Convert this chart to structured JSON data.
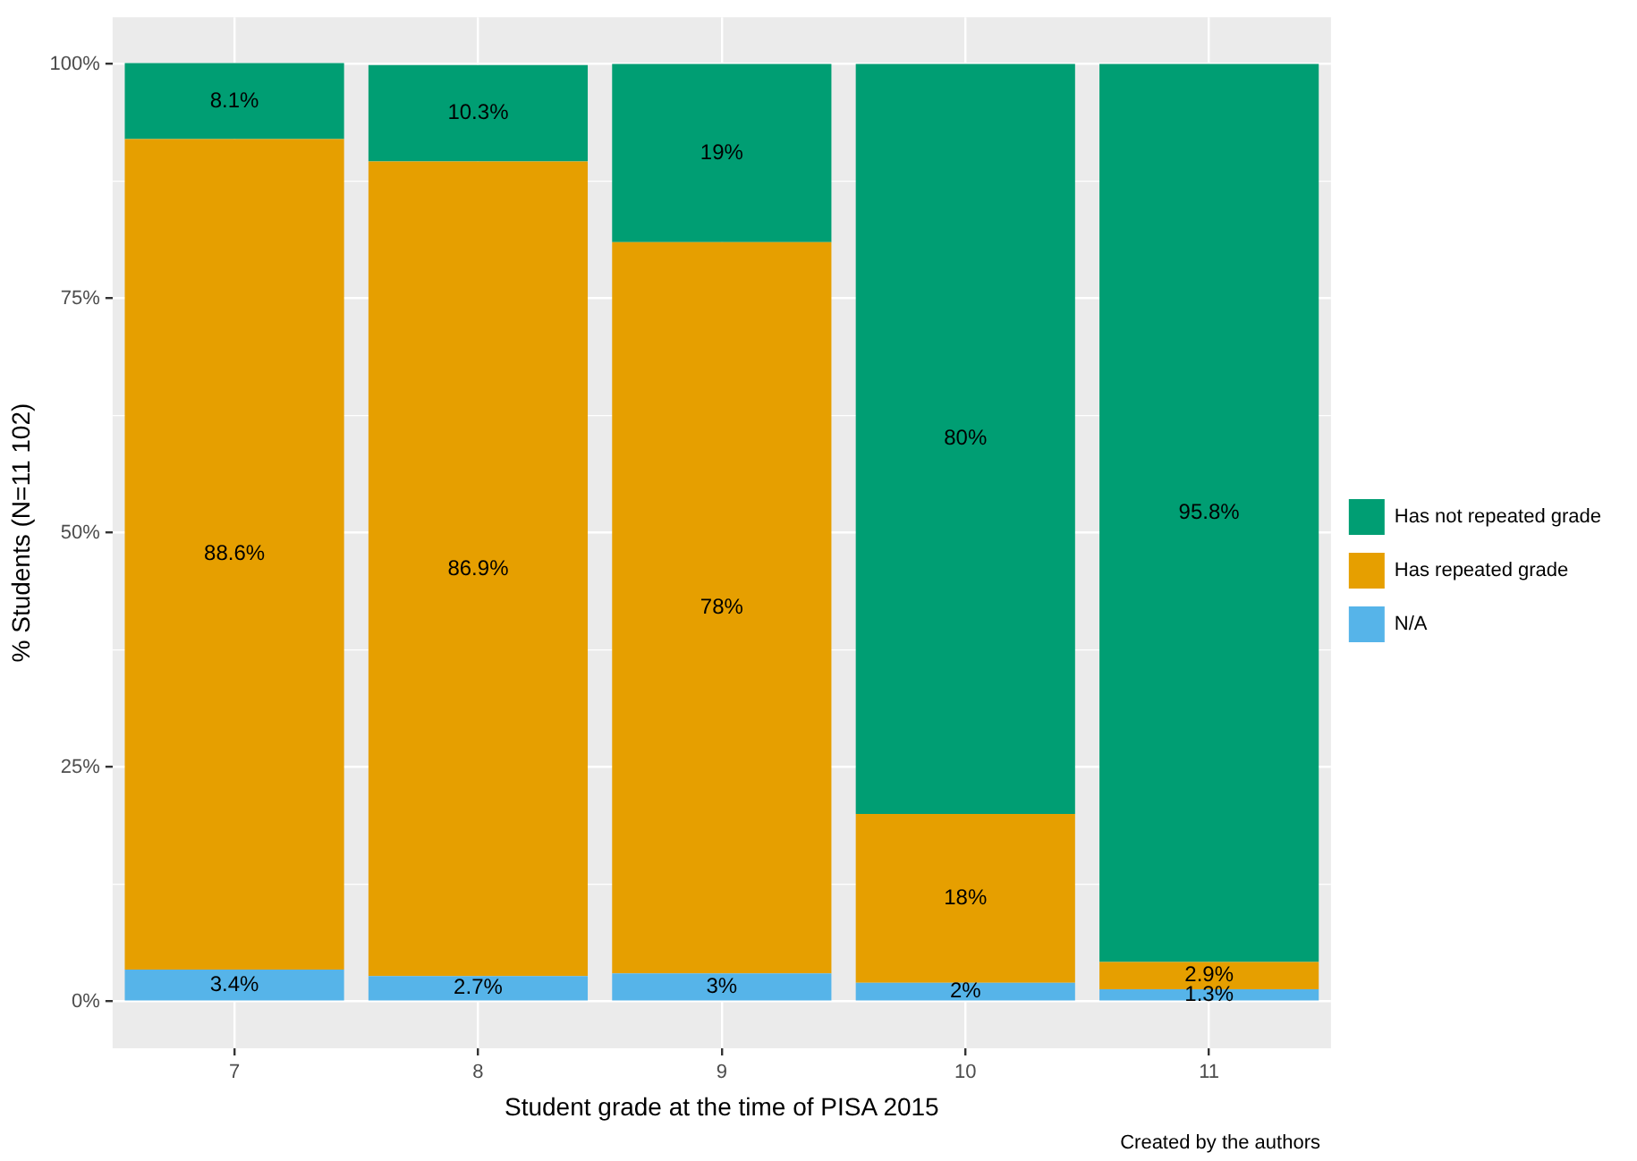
{
  "chart_data": {
    "type": "bar",
    "stacked": true,
    "xlabel": "Student grade at the time of PISA 2015",
    "ylabel": "% Students (N=11 102)",
    "categories": [
      "7",
      "8",
      "9",
      "10",
      "11"
    ],
    "series": [
      {
        "name": "N/A",
        "color": "#56b4e9",
        "values": [
          3.4,
          2.7,
          3,
          2,
          1.3
        ],
        "value_labels": [
          "3.4%",
          "2.7%",
          "3%",
          "2%",
          "1.3%"
        ]
      },
      {
        "name": "Has repeated grade",
        "color": "#e69f00",
        "values": [
          88.6,
          86.9,
          78,
          18,
          2.9
        ],
        "value_labels": [
          "88.6%",
          "86.9%",
          "78%",
          "18%",
          "2.9%"
        ]
      },
      {
        "name": "Has not repeated grade",
        "color": "#009e73",
        "values": [
          8.1,
          10.3,
          19,
          80,
          95.8
        ],
        "value_labels": [
          "8.1%",
          "10.3%",
          "19%",
          "80%",
          "95.8%"
        ]
      }
    ],
    "ylim": [
      -5,
      105
    ],
    "yticks": [
      {
        "value": 0,
        "label": "0%"
      },
      {
        "value": 25,
        "label": "25%"
      },
      {
        "value": 50,
        "label": "50%"
      },
      {
        "value": 75,
        "label": "75%"
      },
      {
        "value": 100,
        "label": "100%"
      }
    ],
    "grid": true,
    "legend": "right",
    "annotations": [
      "Created by the authors"
    ]
  }
}
